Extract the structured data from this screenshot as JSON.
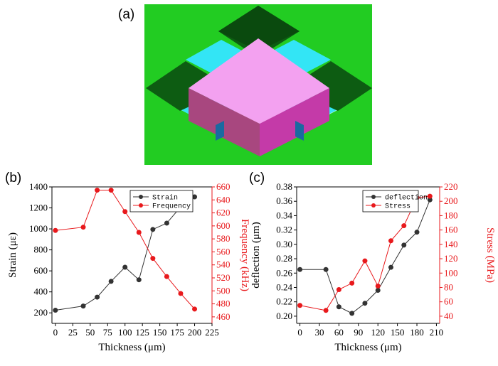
{
  "labels": {
    "a": "(a)",
    "b": "(b)",
    "c": "(c)"
  },
  "colors": {
    "left_series": "#333333",
    "right_series": "#e8191c",
    "background_green": "#22cc22"
  },
  "chart_data": [
    {
      "type": "line",
      "panel": "(b)",
      "xlabel": "Thickness (μm)",
      "ylabel": "Strain (με)",
      "y2label": "Frequency (kHz)",
      "xlim": [
        -5,
        225
      ],
      "ylim": [
        100,
        1400
      ],
      "y2lim": [
        450,
        660
      ],
      "xticks": [
        "0",
        "25",
        "50",
        "75",
        "100",
        "125",
        "150",
        "175",
        "200",
        "225"
      ],
      "yticks": [
        "200",
        "400",
        "600",
        "800",
        "1000",
        "1200",
        "1400"
      ],
      "y2ticks": [
        "460",
        "480",
        "500",
        "520",
        "540",
        "560",
        "580",
        "600",
        "620",
        "640",
        "660"
      ],
      "legend_position": "top-center",
      "series": [
        {
          "name": "Strain",
          "axis": "left",
          "x": [
            0,
            40,
            60,
            80,
            100,
            120,
            140,
            160,
            180,
            200
          ],
          "values": [
            225,
            265,
            350,
            500,
            635,
            515,
            995,
            1055,
            1210,
            1305
          ]
        },
        {
          "name": "Frequency",
          "axis": "right",
          "x": [
            0,
            40,
            60,
            80,
            100,
            120,
            140,
            160,
            180,
            200
          ],
          "values": [
            593,
            598,
            655,
            655,
            622,
            590,
            550,
            522,
            496,
            472
          ]
        }
      ]
    },
    {
      "type": "line",
      "panel": "(c)",
      "xlabel": "Thickness (μm)",
      "ylabel": "deflection (μm)",
      "y2label": "Stress (MPa)",
      "xlim": [
        -5,
        215
      ],
      "ylim": [
        0.19,
        0.38
      ],
      "y2lim": [
        30,
        220
      ],
      "xticks": [
        "0",
        "30",
        "60",
        "90",
        "120",
        "150",
        "180",
        "210"
      ],
      "yticks": [
        "0.20",
        "0.22",
        "0.24",
        "0.26",
        "0.28",
        "0.30",
        "0.32",
        "0.34",
        "0.36",
        "0.38"
      ],
      "y2ticks": [
        "40",
        "60",
        "80",
        "100",
        "120",
        "140",
        "160",
        "180",
        "200",
        "220"
      ],
      "legend_position": "top-right",
      "series": [
        {
          "name": "deflection",
          "axis": "left",
          "x": [
            0,
            40,
            60,
            80,
            100,
            120,
            140,
            160,
            180,
            200
          ],
          "values": [
            0.265,
            0.265,
            0.213,
            0.204,
            0.218,
            0.236,
            0.268,
            0.299,
            0.317,
            0.362
          ]
        },
        {
          "name": "Stress",
          "axis": "right",
          "x": [
            0,
            40,
            60,
            80,
            100,
            120,
            140,
            160,
            180,
            200
          ],
          "values": [
            55,
            48,
            77,
            86,
            117,
            82,
            145,
            166,
            205,
            207
          ]
        }
      ]
    }
  ]
}
